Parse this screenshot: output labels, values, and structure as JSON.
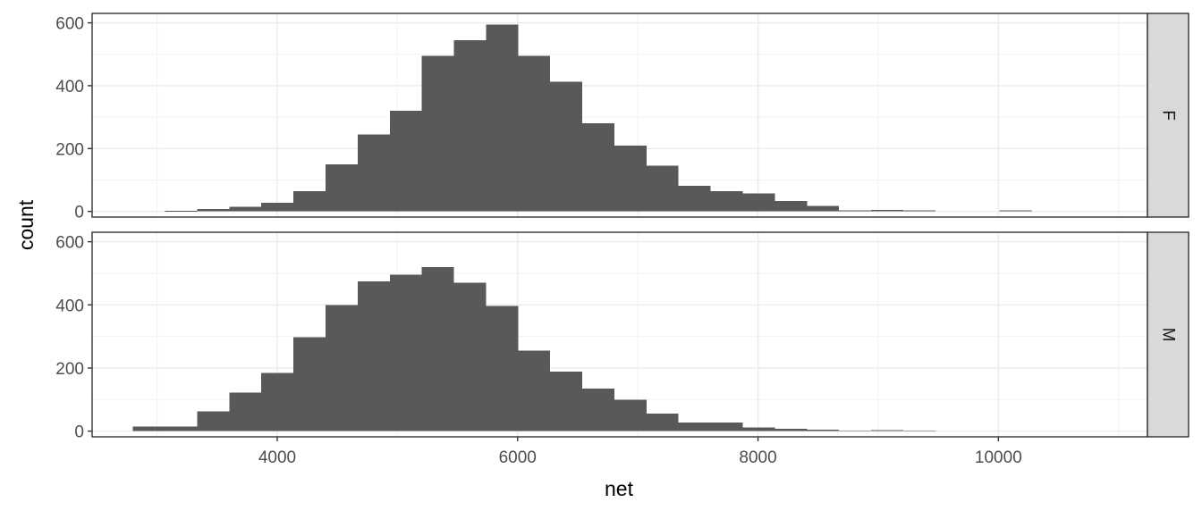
{
  "chart_data": {
    "type": "bar",
    "subtype": "histogram",
    "xlabel": "net",
    "ylabel": "count",
    "xlim": [
      2460,
      11240
    ],
    "ylim": [
      -18,
      630
    ],
    "x_ticks": [
      4000,
      6000,
      8000,
      10000
    ],
    "y_ticks": [
      0,
      200,
      400,
      600
    ],
    "grid": true,
    "theme": "bw",
    "bar_color": "#595959",
    "bin_width": 267,
    "bin_start": 2800,
    "panels": [
      {
        "facet": "F",
        "counts": [
          0,
          2,
          7,
          15,
          27,
          65,
          150,
          245,
          320,
          495,
          545,
          595,
          495,
          413,
          280,
          210,
          145,
          82,
          65,
          58,
          33,
          17,
          3,
          5,
          3,
          0,
          0,
          3,
          0,
          0,
          0
        ]
      },
      {
        "facet": "M",
        "counts": [
          15,
          15,
          62,
          122,
          185,
          298,
          400,
          475,
          495,
          520,
          470,
          397,
          255,
          188,
          135,
          100,
          55,
          27,
          27,
          12,
          8,
          5,
          2,
          3,
          1,
          0,
          0,
          0,
          0,
          0,
          0
        ]
      }
    ]
  }
}
